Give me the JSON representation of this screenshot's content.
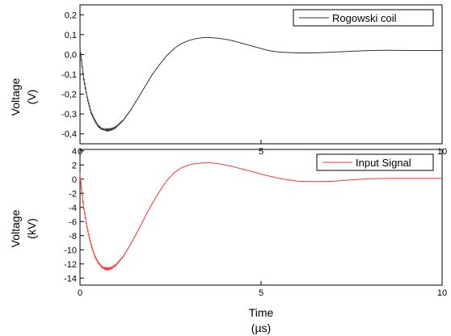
{
  "chart_data": [
    {
      "type": "line",
      "title": "",
      "xlabel": "",
      "ylabel": "Voltage",
      "yunit": "(V)",
      "xlim": [
        0,
        10
      ],
      "ylim": [
        -0.45,
        0.25
      ],
      "xticks": [
        "0",
        "5",
        "10"
      ],
      "yticks": [
        "-0,4",
        "-0,3",
        "-0,2",
        "-0,1",
        "0,0",
        "0,1",
        "0,2"
      ],
      "ytick_values": [
        -0.4,
        -0.3,
        -0.2,
        -0.1,
        0.0,
        0.1,
        0.2
      ],
      "xtick_values": [
        0,
        5,
        10
      ],
      "legend": "top-right",
      "grid": false,
      "series": [
        {
          "name": "Rogowski coil",
          "color": "#333333",
          "x": [
            0,
            0.1,
            0.2,
            0.3,
            0.4,
            0.5,
            0.6,
            0.7,
            0.8,
            0.9,
            1.0,
            1.2,
            1.4,
            1.6,
            1.8,
            2.0,
            2.2,
            2.4,
            2.6,
            2.8,
            3.0,
            3.2,
            3.4,
            3.6,
            3.8,
            4.0,
            4.2,
            4.5,
            4.8,
            5.0,
            5.2,
            5.5,
            6.0,
            6.5,
            7.0,
            7.5,
            8.0,
            8.5,
            9.0,
            9.5,
            10.0
          ],
          "values": [
            0.03,
            -0.12,
            -0.22,
            -0.29,
            -0.33,
            -0.36,
            -0.375,
            -0.38,
            -0.38,
            -0.375,
            -0.365,
            -0.33,
            -0.28,
            -0.22,
            -0.16,
            -0.1,
            -0.05,
            -0.005,
            0.03,
            0.055,
            0.07,
            0.08,
            0.085,
            0.085,
            0.082,
            0.077,
            0.07,
            0.055,
            0.04,
            0.03,
            0.02,
            0.012,
            0.008,
            0.008,
            0.012,
            0.016,
            0.02,
            0.021,
            0.02,
            0.02,
            0.02
          ]
        }
      ]
    },
    {
      "type": "line",
      "title": "",
      "xlabel": "Time",
      "xunit": "(µs)",
      "ylabel": "Voltage",
      "yunit": "(kV)",
      "xlim": [
        0,
        10
      ],
      "ylim": [
        -15,
        4.2
      ],
      "xticks": [
        "0",
        "5",
        "10"
      ],
      "yticks": [
        "-14",
        "-12",
        "-10",
        "-8",
        "-6",
        "-4",
        "-2",
        "0",
        "2",
        "4"
      ],
      "ytick_values": [
        -14,
        -12,
        -10,
        -8,
        -6,
        -4,
        -2,
        0,
        2,
        4
      ],
      "xtick_values": [
        0,
        5,
        10
      ],
      "legend": "top-right",
      "grid": false,
      "series": [
        {
          "name": "Input Signal",
          "color": "#ff3333",
          "x": [
            0,
            0.1,
            0.2,
            0.3,
            0.4,
            0.5,
            0.6,
            0.7,
            0.8,
            0.9,
            1.0,
            1.2,
            1.4,
            1.6,
            1.8,
            2.0,
            2.2,
            2.4,
            2.6,
            2.8,
            3.0,
            3.2,
            3.4,
            3.6,
            3.8,
            4.0,
            4.2,
            4.5,
            4.8,
            5.0,
            5.5,
            6.0,
            6.5,
            7.0,
            7.5,
            8.0,
            8.5,
            9.0,
            9.5,
            10.0
          ],
          "values": [
            0.5,
            -4,
            -7,
            -9.2,
            -10.8,
            -11.8,
            -12.4,
            -12.7,
            -12.7,
            -12.5,
            -12.1,
            -10.9,
            -9.2,
            -7.3,
            -5.3,
            -3.4,
            -1.7,
            -0.2,
            0.9,
            1.6,
            2.0,
            2.2,
            2.3,
            2.3,
            2.2,
            2.0,
            1.8,
            1.4,
            1.0,
            0.7,
            0.1,
            -0.3,
            -0.35,
            -0.3,
            -0.1,
            0.05,
            0.1,
            0.1,
            0.1,
            0.1
          ]
        }
      ]
    }
  ]
}
